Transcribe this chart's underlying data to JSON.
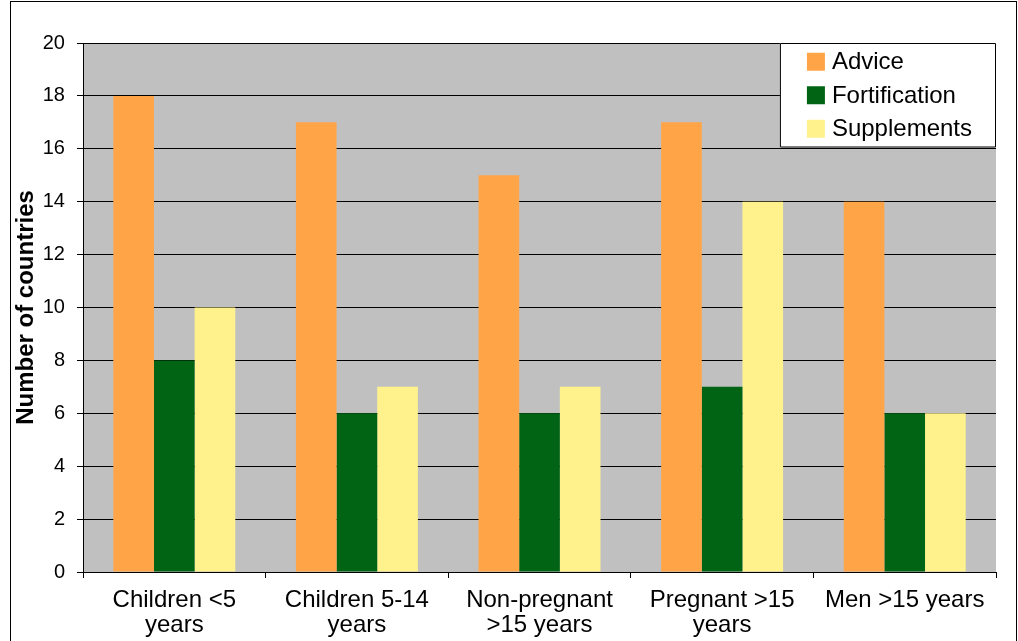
{
  "chart_data": {
    "type": "bar",
    "ylabel": "Number of countries",
    "categories": [
      "Children <5 years",
      "Children 5-14 years",
      "Non-pregnant >15 years",
      "Pregnant >15 years",
      "Men >15 years"
    ],
    "series": [
      {
        "name": "Advice",
        "color": "#ffa547",
        "values": [
          18,
          17,
          15,
          17,
          14
        ]
      },
      {
        "name": "Fortification",
        "color": "#006414",
        "values": [
          8,
          6,
          6,
          7,
          6
        ]
      },
      {
        "name": "Supplements",
        "color": "#fff28c",
        "values": [
          10,
          7,
          7,
          14,
          6
        ]
      }
    ],
    "ylim": [
      0,
      20
    ],
    "yticks": [
      0,
      2,
      4,
      6,
      8,
      10,
      12,
      14,
      16,
      18,
      20
    ],
    "grid": "y",
    "legend": "top right"
  }
}
